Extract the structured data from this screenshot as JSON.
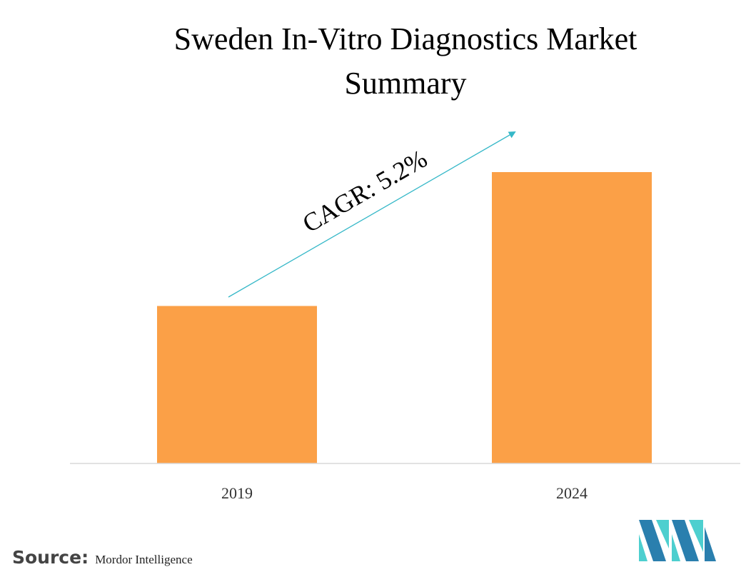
{
  "chart_data": {
    "type": "bar",
    "title_lines": [
      "Sweden In-Vitro Diagnostics Market",
      "Summary"
    ],
    "categories": [
      "2019",
      "2024"
    ],
    "values": [
      1.0,
      1.85
    ],
    "ylim": [
      0,
      1.85
    ],
    "annotation": "CAGR: 5.2%",
    "grid": false,
    "legend": "none"
  },
  "source": {
    "label": "Source:",
    "value": "Mordor Intelligence"
  },
  "colors": {
    "bar": "#FBA047",
    "arrow": "#36B8C8",
    "baseline": "#D9D9D9",
    "logo_dark": "#2A7FAE",
    "logo_light": "#4DCFCF"
  },
  "logo": {
    "icon": "mordor-intelligence-logo-icon"
  }
}
